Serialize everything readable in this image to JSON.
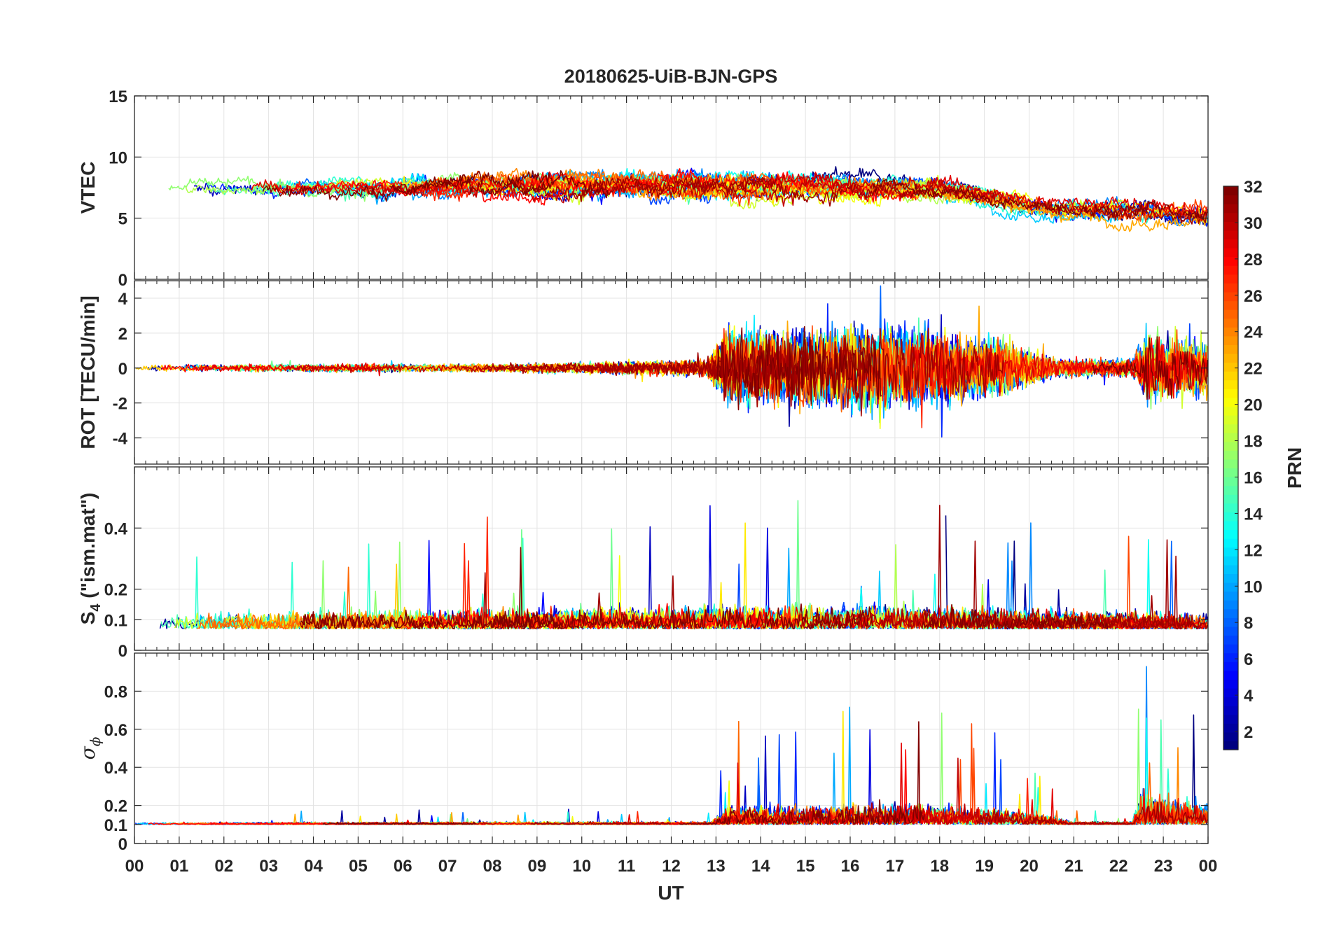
{
  "chart_data": {
    "type": "line",
    "title": "20180625-UiB-BJN-GPS",
    "xlabel": "UT",
    "x_ticks": [
      "00",
      "01",
      "02",
      "03",
      "04",
      "05",
      "06",
      "07",
      "08",
      "09",
      "10",
      "11",
      "12",
      "13",
      "14",
      "15",
      "16",
      "17",
      "18",
      "19",
      "20",
      "21",
      "22",
      "23",
      "00"
    ],
    "x_range_hours": [
      0,
      24
    ],
    "grid": true,
    "colorbar": {
      "label": "PRN",
      "ticks": [
        "2",
        "4",
        "6",
        "8",
        "10",
        "12",
        "14",
        "16",
        "18",
        "20",
        "22",
        "24",
        "26",
        "28",
        "30",
        "32"
      ],
      "range": [
        1,
        32
      ],
      "colormap": "jet",
      "placement": "right"
    },
    "panels": [
      {
        "ylabel": "VTEC",
        "ylim": [
          0,
          15
        ],
        "y_ticks": [
          "0",
          "5",
          "10",
          "15"
        ],
        "activity": [
          [
            0,
            7.5,
            1.2
          ],
          [
            12.8,
            7.8,
            2.2
          ],
          [
            18,
            7.5,
            1.8
          ],
          [
            20.5,
            5.8,
            1.6
          ],
          [
            23,
            5.6,
            2.0
          ],
          [
            24,
            5.5,
            2.2
          ]
        ]
      },
      {
        "ylabel": "ROT [TECU/min]",
        "ylim": [
          -5.5,
          5
        ],
        "y_ticks": [
          "-4",
          "-2",
          "0",
          "2",
          "4"
        ],
        "activity": [
          [
            0,
            0,
            0.25
          ],
          [
            8,
            0,
            0.3
          ],
          [
            12.8,
            0,
            0.6
          ],
          [
            13.2,
            0,
            2.8
          ],
          [
            17,
            0,
            3.0
          ],
          [
            19.5,
            0,
            2.0
          ],
          [
            20.5,
            0,
            0.7
          ],
          [
            22.3,
            0,
            0.6
          ],
          [
            22.6,
            0,
            2.5
          ],
          [
            24,
            0,
            2.0
          ]
        ]
      },
      {
        "ylabel_main": "S",
        "ylabel_sub": "4",
        "ylabel_rest": " (\"ism.mat\")",
        "ylim": [
          0,
          0.6
        ],
        "y_ticks": [
          "0",
          "0.1",
          "0.2",
          "0.4"
        ],
        "activity": [
          [
            0,
            0.07,
            0.08
          ],
          [
            6,
            0.07,
            0.1
          ],
          [
            13,
            0.07,
            0.12
          ],
          [
            17,
            0.07,
            0.13
          ],
          [
            20,
            0.07,
            0.1
          ],
          [
            24,
            0.07,
            0.08
          ]
        ]
      },
      {
        "ylabel_main": "σ",
        "ylabel_sub": "ϕ",
        "ylim": [
          0,
          1
        ],
        "y_ticks": [
          "0",
          "0.1",
          "0.2",
          "0.4",
          "0.6",
          "0.8"
        ],
        "activity": [
          [
            0,
            0.1,
            0.03
          ],
          [
            12.9,
            0.1,
            0.04
          ],
          [
            13.3,
            0.1,
            0.25
          ],
          [
            17.5,
            0.1,
            0.3
          ],
          [
            19.8,
            0.1,
            0.2
          ],
          [
            21,
            0.1,
            0.04
          ],
          [
            22.3,
            0.1,
            0.04
          ],
          [
            22.5,
            0.1,
            0.45
          ],
          [
            24,
            0.1,
            0.3
          ]
        ]
      }
    ],
    "series_count": 32
  }
}
